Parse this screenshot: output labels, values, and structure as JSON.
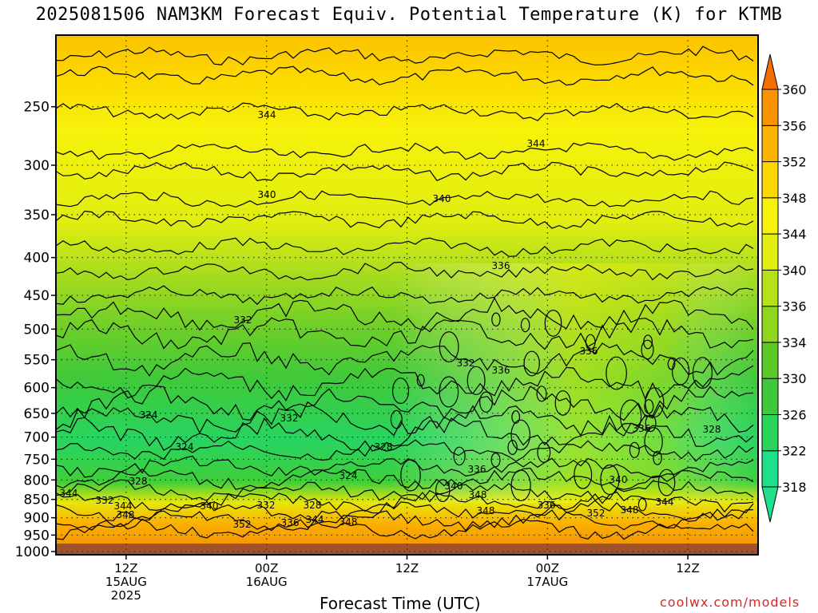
{
  "chart_data": {
    "type": "heatmap",
    "title": "2025081506 NAM3KM Forecast Equiv. Potential Temperature (K) for KTMB",
    "xlabel": "Forecast Time (UTC)",
    "ylabel": "",
    "y_scale": "log-pressure",
    "ylim": [
      1010,
      200
    ],
    "y_ticks": [
      250,
      300,
      350,
      400,
      450,
      500,
      550,
      600,
      650,
      700,
      750,
      800,
      850,
      900,
      950,
      1000
    ],
    "x_ticks": [
      {
        "line1": "12Z",
        "line2": "15AUG",
        "line3": "2025"
      },
      {
        "line1": "00Z",
        "line2": "16AUG",
        "line3": ""
      },
      {
        "line1": "12Z",
        "line2": "",
        "line3": ""
      },
      {
        "line1": "00Z",
        "line2": "17AUG",
        "line3": ""
      },
      {
        "line1": "12Z",
        "line2": "",
        "line3": ""
      }
    ],
    "grid": true,
    "colorbar": {
      "levels": [
        318,
        322,
        326,
        330,
        334,
        336,
        340,
        344,
        348,
        352,
        356,
        360
      ],
      "colors": [
        "#1ee08a",
        "#28d45a",
        "#3fc93a",
        "#5dc928",
        "#8fd61e",
        "#b6e01a",
        "#e0ee10",
        "#f7f20a",
        "#fcd800",
        "#fbb400",
        "#f99300",
        "#f46f00"
      ],
      "extend": "both"
    },
    "contour_labels": [
      "344",
      "344",
      "340",
      "340",
      "336",
      "336",
      "332",
      "332",
      "336",
      "324",
      "332",
      "324",
      "328",
      "336",
      "328",
      "324",
      "336",
      "328",
      "332",
      "340",
      "348",
      "336",
      "340",
      "344",
      "348",
      "332",
      "328",
      "336",
      "344",
      "348",
      "352",
      "344",
      "348",
      "340",
      "352",
      "348",
      "344"
    ],
    "colors": {
      "ground": "#a0522d",
      "grid": "#222222",
      "credit": "#d62728"
    }
  },
  "footer": {
    "credit": "coolwx.com/models"
  }
}
